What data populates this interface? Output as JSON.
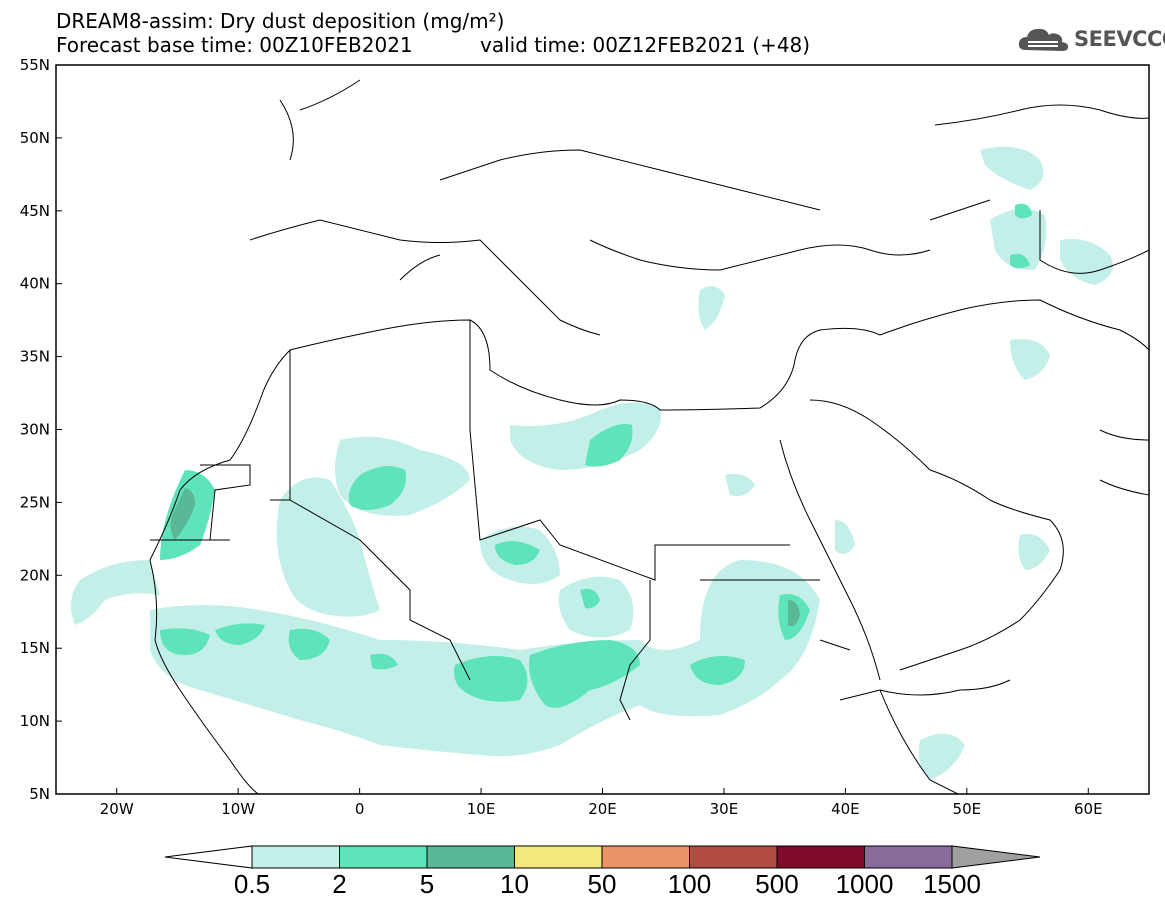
{
  "title": {
    "line1": "DREAM8-assim: Dry dust deposition (mg/m²)",
    "line2": "Forecast base time: 00Z10FEB2021",
    "valid": "valid time: 00Z12FEB2021 (+48)"
  },
  "logo": {
    "text": "SEEVCCC",
    "icon": "cloud-logo-icon"
  },
  "map": {
    "lon_range": [
      -25,
      65
    ],
    "lat_range": [
      5,
      55
    ],
    "lat_ticks": [
      "55N",
      "50N",
      "45N",
      "40N",
      "35N",
      "30N",
      "25N",
      "20N",
      "15N",
      "10N",
      "5N"
    ],
    "lon_ticks": [
      "20W",
      "10W",
      "0",
      "10E",
      "20E",
      "30E",
      "40E",
      "50E",
      "60E"
    ]
  },
  "colorbar": {
    "labels": [
      "0.5",
      "2",
      "5",
      "10",
      "50",
      "100",
      "500",
      "1000",
      "1500"
    ],
    "colors": [
      "#c2f0e8",
      "#5fe3bb",
      "#5bb897",
      "#f3e97a",
      "#ec936a",
      "#b04c40",
      "#800a2a",
      "#8b6a9c",
      "#a0a0a0"
    ],
    "under_color": "#ffffff"
  }
}
